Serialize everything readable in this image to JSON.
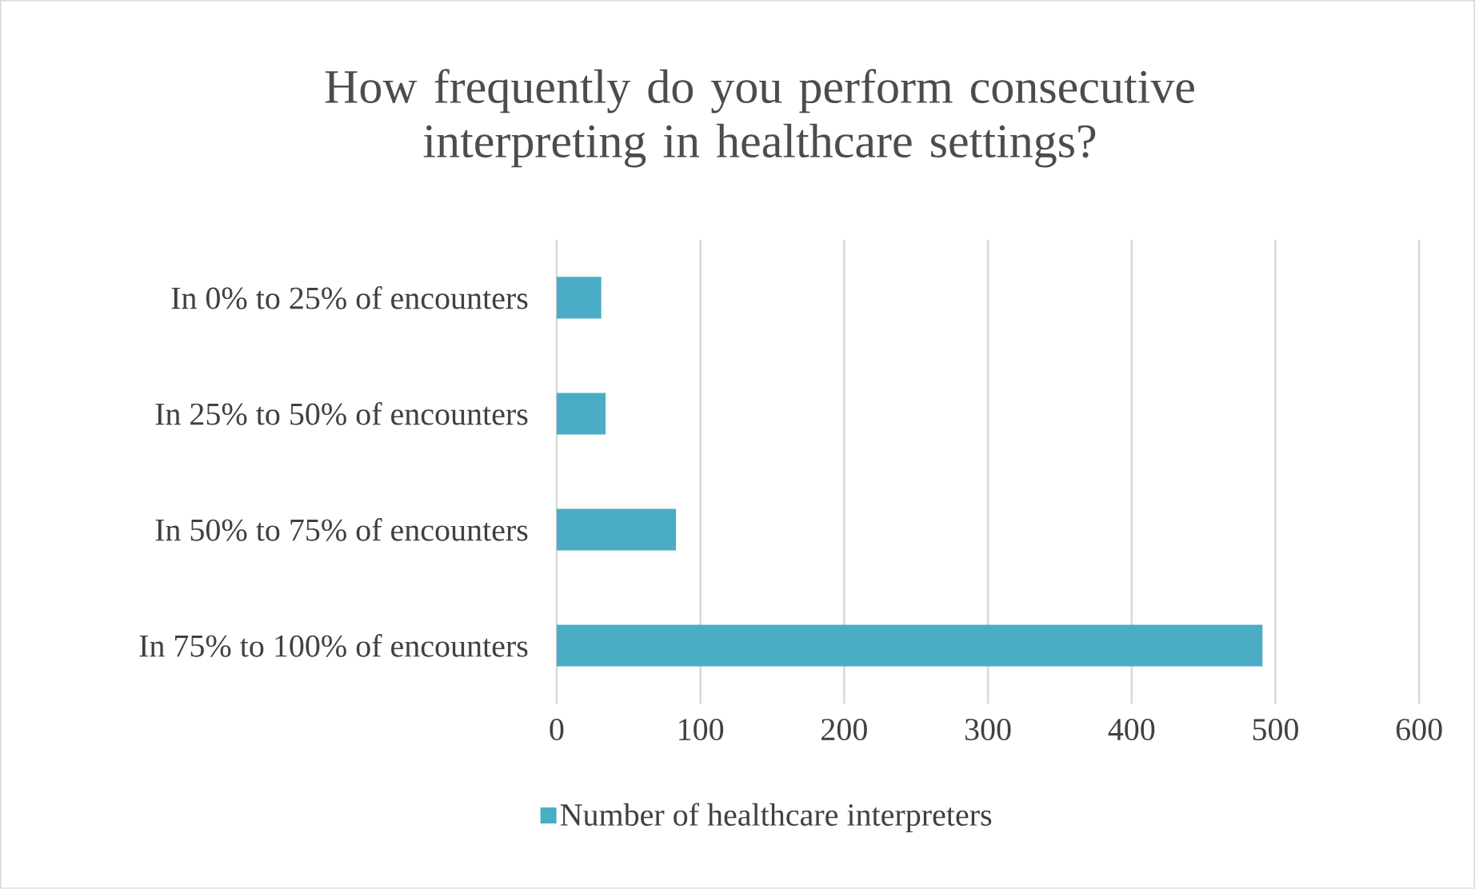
{
  "chart_data": {
    "type": "bar",
    "orientation": "horizontal",
    "title": "How frequently do you perform consecutive interpreting in healthcare settings?",
    "categories": [
      "In 0% to 25% of encounters",
      "In 25% to 50% of encounters",
      "In 50% to 75% of encounters",
      "In 75% to 100% of encounters"
    ],
    "series": [
      {
        "name": "Number of healthcare interpreters",
        "color": "#4bacc6",
        "values": [
          31,
          34,
          83,
          491
        ]
      }
    ],
    "xlim": [
      0,
      600
    ],
    "xticks": [
      0,
      100,
      200,
      300,
      400,
      500,
      600
    ],
    "grid": "x",
    "legend": "bottom"
  }
}
